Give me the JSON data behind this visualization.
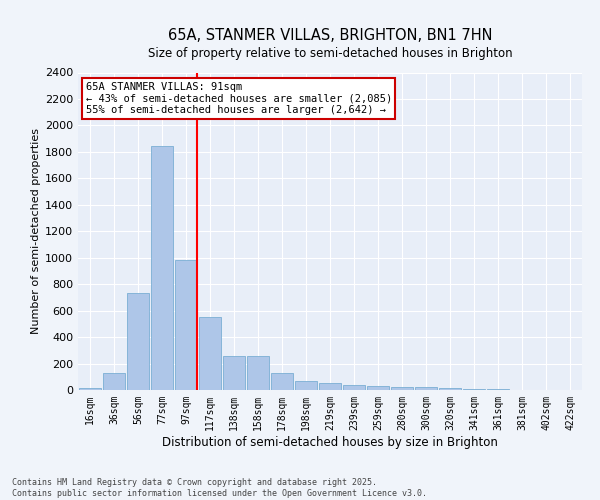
{
  "title": "65A, STANMER VILLAS, BRIGHTON, BN1 7HN",
  "subtitle": "Size of property relative to semi-detached houses in Brighton",
  "xlabel": "Distribution of semi-detached houses by size in Brighton",
  "ylabel": "Number of semi-detached properties",
  "footer_line1": "Contains HM Land Registry data © Crown copyright and database right 2025.",
  "footer_line2": "Contains public sector information licensed under the Open Government Licence v3.0.",
  "bin_labels": [
    "16sqm",
    "36sqm",
    "56sqm",
    "77sqm",
    "97sqm",
    "117sqm",
    "138sqm",
    "158sqm",
    "178sqm",
    "198sqm",
    "219sqm",
    "239sqm",
    "259sqm",
    "280sqm",
    "300sqm",
    "320sqm",
    "341sqm",
    "361sqm",
    "381sqm",
    "402sqm",
    "422sqm"
  ],
  "bin_values": [
    15,
    125,
    730,
    1845,
    980,
    550,
    255,
    255,
    130,
    70,
    55,
    38,
    30,
    25,
    20,
    15,
    5,
    5,
    2,
    2,
    1
  ],
  "bar_color": "#aec6e8",
  "bar_edge_color": "#7bafd4",
  "background_color": "#e8eef8",
  "grid_color": "#ffffff",
  "red_line_bin": 4,
  "annotation_title": "65A STANMER VILLAS: 91sqm",
  "annotation_line1": "← 43% of semi-detached houses are smaller (2,085)",
  "annotation_line2": "55% of semi-detached houses are larger (2,642) →",
  "annotation_box_color": "#ffffff",
  "annotation_box_edge": "#cc0000",
  "fig_bg_color": "#f0f4fa",
  "ylim": [
    0,
    2400
  ],
  "yticks": [
    0,
    200,
    400,
    600,
    800,
    1000,
    1200,
    1400,
    1600,
    1800,
    2000,
    2200,
    2400
  ]
}
